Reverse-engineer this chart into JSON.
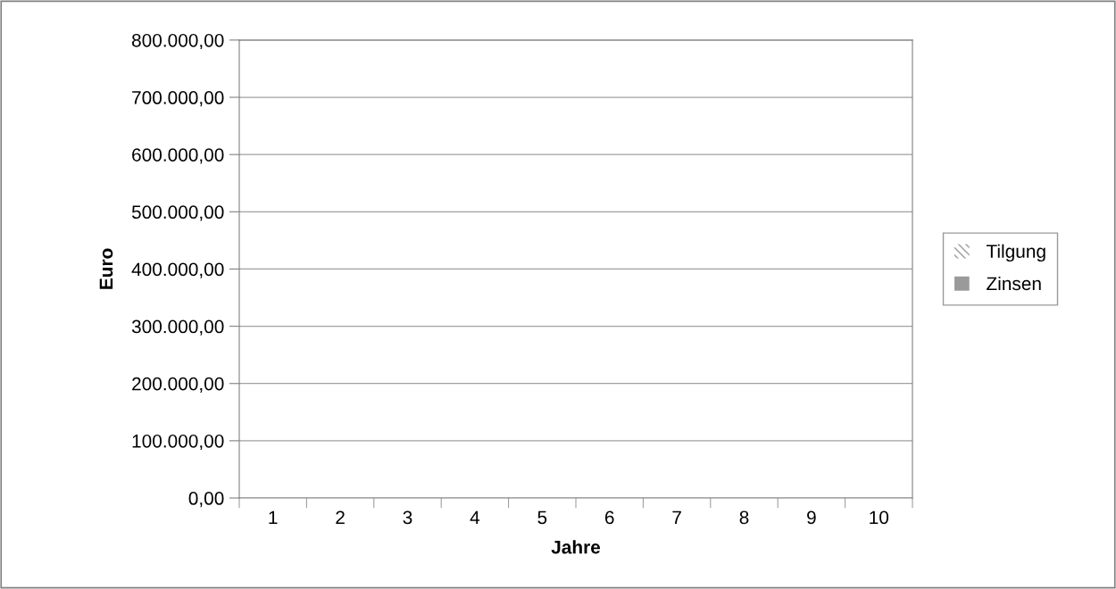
{
  "chart_data": {
    "type": "bar",
    "xlabel": "Jahre",
    "ylabel": "Euro",
    "categories": [
      "1",
      "2",
      "3",
      "4",
      "5",
      "6",
      "7",
      "8",
      "9",
      "10"
    ],
    "series": [
      {
        "name": "Tilgung",
        "color": "#9a9a9a",
        "values": [
          null,
          null,
          null,
          null,
          null,
          null,
          null,
          null,
          null,
          null
        ]
      },
      {
        "name": "Zinsen",
        "color": "#9a9a9a",
        "values": [
          null,
          null,
          null,
          null,
          null,
          null,
          null,
          null,
          null,
          null
        ]
      }
    ],
    "ylim": [
      0,
      800000
    ],
    "yticks": [
      {
        "value": 0,
        "label": "0,00"
      },
      {
        "value": 100000,
        "label": "100.000,00"
      },
      {
        "value": 200000,
        "label": "200.000,00"
      },
      {
        "value": 300000,
        "label": "300.000,00"
      },
      {
        "value": 400000,
        "label": "400.000,00"
      },
      {
        "value": 500000,
        "label": "500.000,00"
      },
      {
        "value": 600000,
        "label": "600.000,00"
      },
      {
        "value": 700000,
        "label": "700.000,00"
      },
      {
        "value": 800000,
        "label": "800.000,00"
      }
    ],
    "grid": "y",
    "legend": "right"
  }
}
